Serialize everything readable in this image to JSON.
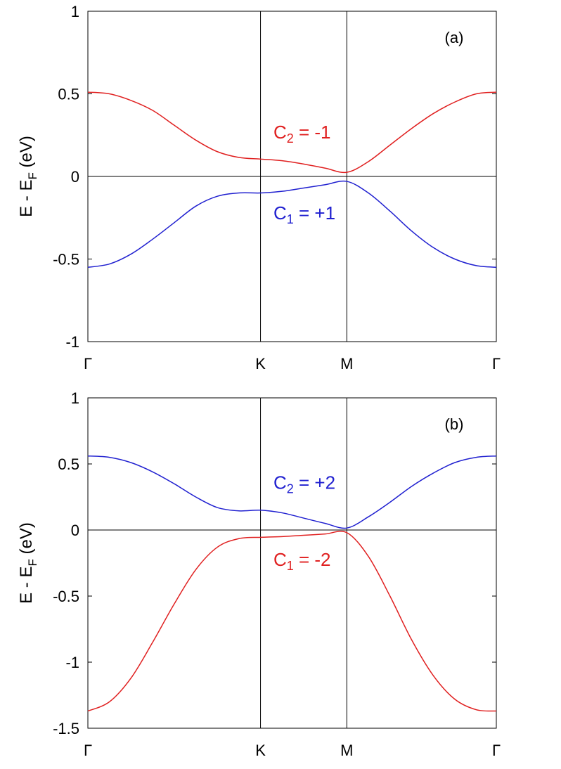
{
  "chart_data": [
    {
      "type": "line",
      "panel_label": "(a)",
      "ylabel": {
        "main": "E - E",
        "sub": "F",
        "unit": " (eV)"
      },
      "ylim": [
        -1,
        1
      ],
      "yticks": [
        -1,
        -0.5,
        0,
        0.5,
        1
      ],
      "ytick_labels": [
        "-1",
        "-0.5",
        "0",
        "0.5",
        "1"
      ],
      "x_ticks": [
        {
          "label": "Γ",
          "pos": 0
        },
        {
          "label": "K",
          "pos": 2
        },
        {
          "label": "M",
          "pos": 3
        },
        {
          "label": "Γ",
          "pos": 4.732
        }
      ],
      "vertical_lines_at": [
        2,
        3
      ],
      "zero_line": true,
      "grid": false,
      "series": [
        {
          "color": "#e02020",
          "x": [
            0,
            0.25,
            0.5,
            0.75,
            1.0,
            1.25,
            1.5,
            1.75,
            2.0,
            2.25,
            2.5,
            2.75,
            3.0,
            3.25,
            3.5,
            3.75,
            4.0,
            4.25,
            4.5,
            4.732
          ],
          "y": [
            0.51,
            0.5,
            0.46,
            0.4,
            0.31,
            0.22,
            0.15,
            0.115,
            0.105,
            0.095,
            0.075,
            0.05,
            0.025,
            0.09,
            0.19,
            0.29,
            0.38,
            0.45,
            0.5,
            0.51
          ]
        },
        {
          "color": "#2020d0",
          "x": [
            0,
            0.25,
            0.5,
            0.75,
            1.0,
            1.25,
            1.5,
            1.75,
            2.0,
            2.25,
            2.5,
            2.75,
            3.0,
            3.25,
            3.5,
            3.75,
            4.0,
            4.25,
            4.5,
            4.732
          ],
          "y": [
            -0.55,
            -0.53,
            -0.47,
            -0.38,
            -0.28,
            -0.18,
            -0.12,
            -0.1,
            -0.1,
            -0.09,
            -0.07,
            -0.05,
            -0.03,
            -0.1,
            -0.21,
            -0.33,
            -0.43,
            -0.5,
            -0.54,
            -0.55
          ]
        }
      ],
      "annotations": [
        {
          "text": "C",
          "sub": "2",
          "rest": " = -1",
          "color": "#e02020",
          "x": 2.15,
          "y": 0.23
        },
        {
          "text": "C",
          "sub": "1",
          "rest": " = +1",
          "color": "#2020d0",
          "x": 2.15,
          "y": -0.26
        }
      ]
    },
    {
      "type": "line",
      "panel_label": "(b)",
      "ylabel": {
        "main": "E - E",
        "sub": "F",
        "unit": " (eV)"
      },
      "ylim": [
        -1.5,
        1
      ],
      "yticks": [
        -1.5,
        -1,
        -0.5,
        0,
        0.5,
        1
      ],
      "ytick_labels": [
        "-1.5",
        "-1",
        "-0.5",
        "0",
        "0.5",
        "1"
      ],
      "x_ticks": [
        {
          "label": "Γ",
          "pos": 0
        },
        {
          "label": "K",
          "pos": 2
        },
        {
          "label": "M",
          "pos": 3
        },
        {
          "label": "Γ",
          "pos": 4.732
        }
      ],
      "vertical_lines_at": [
        2,
        3
      ],
      "zero_line": true,
      "grid": false,
      "series": [
        {
          "color": "#2020d0",
          "x": [
            0,
            0.25,
            0.5,
            0.75,
            1.0,
            1.25,
            1.5,
            1.75,
            2.0,
            2.25,
            2.5,
            2.75,
            3.0,
            3.25,
            3.5,
            3.75,
            4.0,
            4.25,
            4.5,
            4.732
          ],
          "y": [
            0.56,
            0.55,
            0.51,
            0.44,
            0.35,
            0.25,
            0.17,
            0.145,
            0.15,
            0.13,
            0.09,
            0.05,
            0.015,
            0.1,
            0.21,
            0.33,
            0.43,
            0.51,
            0.55,
            0.56
          ]
        },
        {
          "color": "#e02020",
          "x": [
            0,
            0.25,
            0.5,
            0.75,
            1.0,
            1.25,
            1.5,
            1.75,
            2.0,
            2.25,
            2.5,
            2.75,
            3.0,
            3.25,
            3.5,
            3.75,
            4.0,
            4.25,
            4.5,
            4.732
          ],
          "y": [
            -1.37,
            -1.3,
            -1.12,
            -0.85,
            -0.56,
            -0.3,
            -0.13,
            -0.065,
            -0.055,
            -0.05,
            -0.04,
            -0.03,
            -0.02,
            -0.2,
            -0.5,
            -0.83,
            -1.1,
            -1.28,
            -1.36,
            -1.37
          ]
        }
      ],
      "annotations": [
        {
          "text": "C",
          "sub": "2",
          "rest": " = +2",
          "color": "#2020d0",
          "x": 2.15,
          "y": 0.31
        },
        {
          "text": "C",
          "sub": "1",
          "rest": " = -2",
          "color": "#e02020",
          "x": 2.15,
          "y": -0.27
        }
      ]
    }
  ]
}
